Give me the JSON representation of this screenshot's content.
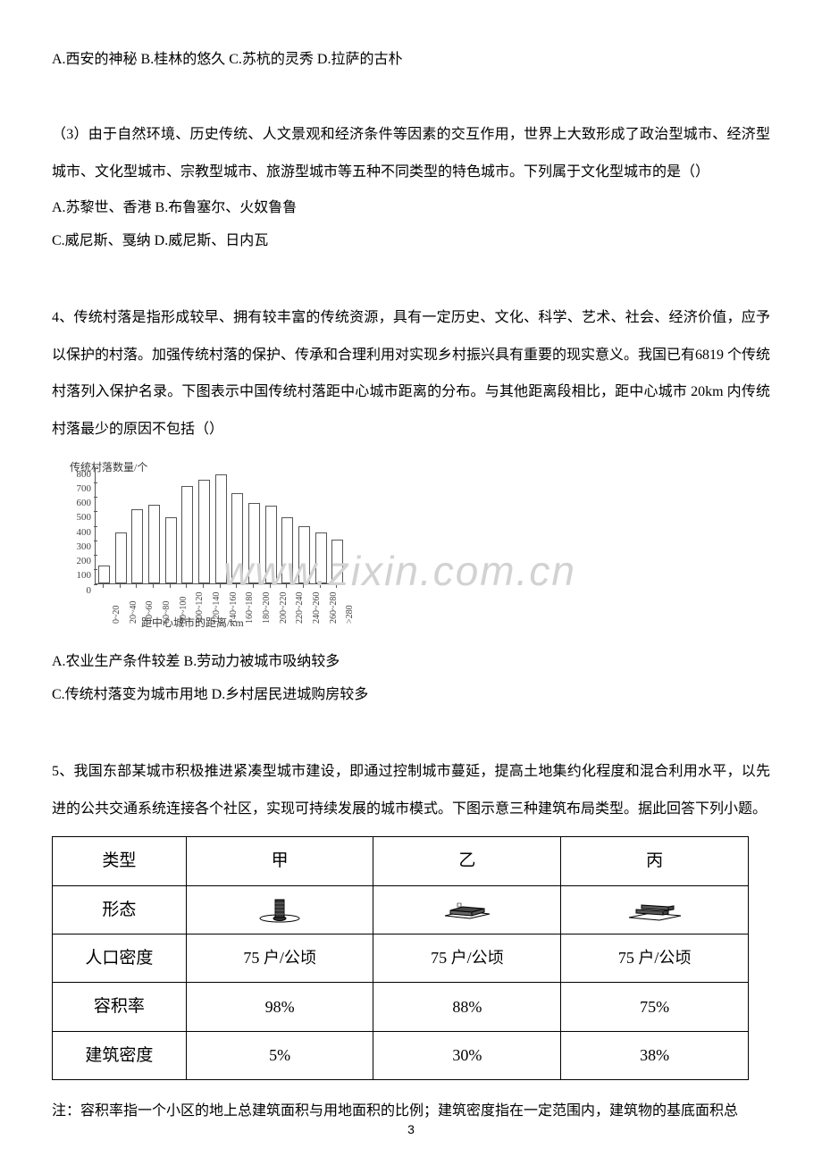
{
  "q3_opts_line": "A.西安的神秘 B.桂林的悠久 C.苏杭的灵秀 D.拉萨的古朴",
  "q3_sub3": "（3）由于自然环境、历史传统、人文景观和经济条件等因素的交互作用，世界上大致形成了政治型城市、经济型城市、文化型城市、宗教型城市、旅游型城市等五种不同类型的特色城市。下列属于文化型城市的是（）",
  "q3_sub3_optA": "A.苏黎世、香港 B.布鲁塞尔、火奴鲁鲁",
  "q3_sub3_optC": "C.威尼斯、戛纳 D.威尼斯、日内瓦",
  "q4_body": "4、传统村落是指形成较早、拥有较丰富的传统资源，具有一定历史、文化、科学、艺术、社会、经济价值，应予以保护的村落。加强传统村落的保护、传承和合理利用对实现乡村振兴具有重要的现实意义。我国已有6819 个传统村落列入保护名录。下图表示中国传统村落距中心城市距离的分布。与其他距离段相比，距中心城市 20km 内传统村落最少的原因不包括（）",
  "q4_optA": "A.农业生产条件较差 B.劳动力被城市吸纳较多",
  "q4_optC": "C.传统村落变为城市用地 D.乡村居民进城购房较多",
  "q5_body": "5、我国东部某城市积极推进紧凑型城市建设，即通过控制城市蔓延，提高土地集约化程度和混合利用水平，以先进的公共交通系统连接各个社区，实现可持续发展的城市模式。下图示意三种建筑布局类型。据此回答下列小题。",
  "q5_note": "注：容积率指一个小区的地上总建筑面积与用地面积的比例；建筑密度指在一定范围内，建筑物的基底面积总",
  "chart": {
    "ylabel": "传统村落数量/个",
    "xlabel": "距中心城市的距离/km",
    "categories": [
      "0~20",
      "20~40",
      "40~60",
      "60~80",
      "80~100",
      "100~120",
      "120~140",
      "140~160",
      "160~180",
      "180~200",
      "200~220",
      "220~240",
      "240~260",
      "260~280",
      ">280"
    ],
    "values": [
      120,
      350,
      510,
      540,
      450,
      670,
      710,
      750,
      620,
      550,
      530,
      450,
      390,
      350,
      300
    ],
    "yticks": [
      0,
      100,
      200,
      300,
      400,
      500,
      600,
      700,
      800
    ],
    "ymax": 800,
    "bar_fill": "#ffffff",
    "bar_stroke": "#555555",
    "axis_color": "#555555",
    "label_color": "#3a3a3a"
  },
  "watermark_text": "www.zixin.com.cn",
  "table5": {
    "headers": [
      "类型",
      "甲",
      "乙",
      "丙"
    ],
    "rows": [
      {
        "label": "形态",
        "cells": [
          "shape-a",
          "shape-b",
          "shape-c"
        ]
      },
      {
        "label": "人口密度",
        "cells": [
          "75 户/公顷",
          "75 户/公顷",
          "75 户/公顷"
        ]
      },
      {
        "label": "容积率",
        "cells": [
          "98%",
          "88%",
          "75%"
        ]
      },
      {
        "label": "建筑密度",
        "cells": [
          "5%",
          "30%",
          "38%"
        ]
      }
    ]
  },
  "page_number": "3"
}
